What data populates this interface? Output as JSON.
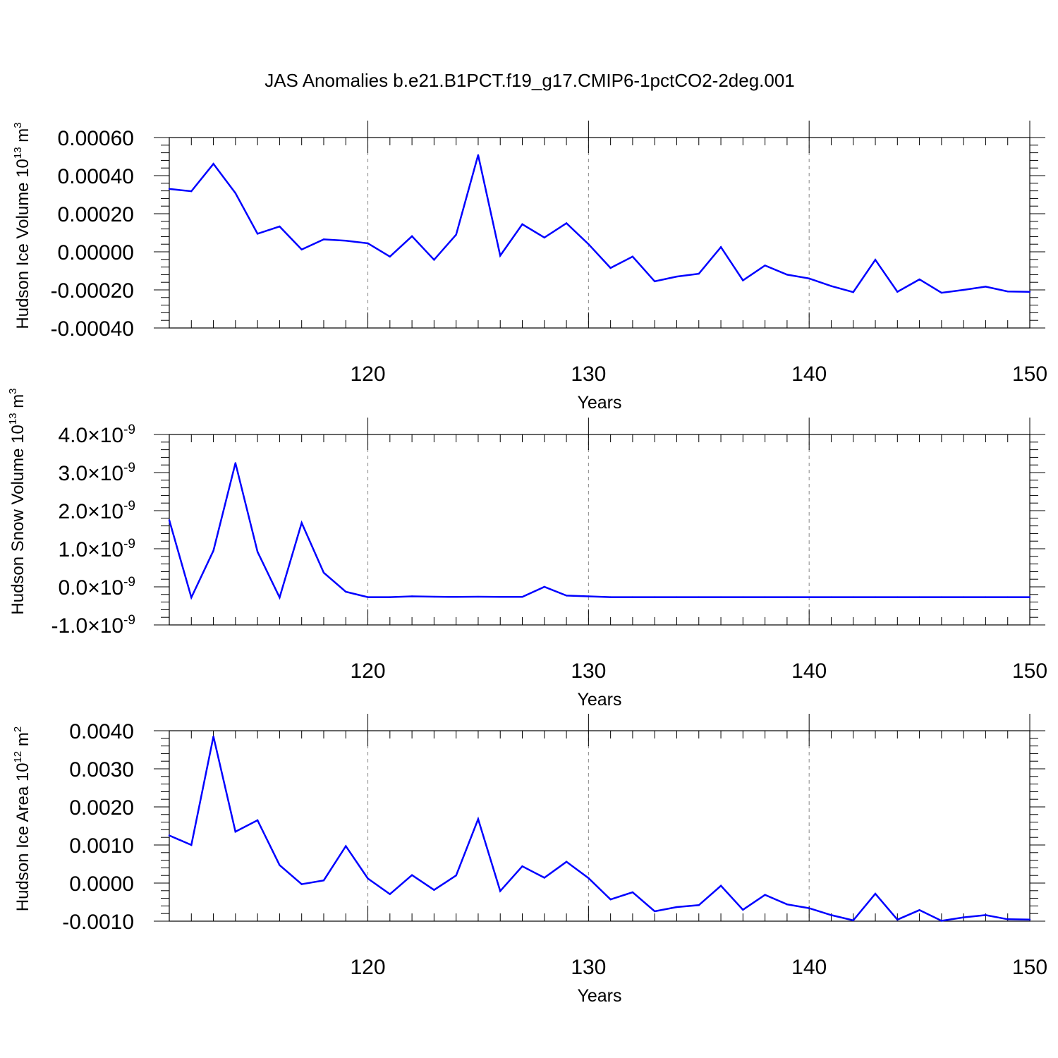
{
  "title": "JAS Anomalies b.e21.B1PCT.f19_g17.CMIP6-1pctCO2-2deg.001",
  "colors": {
    "line": "#0000ff",
    "axis": "#000000",
    "grid": "#888888"
  },
  "chart_data": [
    {
      "type": "line",
      "xlabel": "Years",
      "ylabel": "Hudson Ice Volume 10",
      "ylabel_exp": "13",
      "ylabel_unit": " m",
      "ylabel_unit_exp": "3",
      "xlim": [
        111,
        150
      ],
      "ylim": [
        -0.0004,
        0.0006
      ],
      "xticks": [
        120,
        130,
        140,
        150
      ],
      "yticks": [
        0.0006,
        0.0004,
        0.0002,
        0.0,
        -0.0002,
        -0.0004
      ],
      "ytick_labels": [
        "0.00060",
        "0.00040",
        "0.00020",
        "0.00000",
        "-0.00020",
        "-0.00040"
      ],
      "grid_x": [
        120,
        130,
        140
      ],
      "x": [
        111,
        112,
        113,
        114,
        115,
        116,
        117,
        118,
        119,
        120,
        121,
        122,
        123,
        124,
        125,
        126,
        127,
        128,
        129,
        130,
        131,
        132,
        133,
        134,
        135,
        136,
        137,
        138,
        139,
        140,
        141,
        142,
        143,
        144,
        145,
        146,
        147,
        148,
        149,
        150
      ],
      "values": [
        0.00033,
        0.000318,
        0.000462,
        0.000308,
        9.5e-05,
        0.000133,
        1.2e-05,
        6.5e-05,
        5.8e-05,
        4.5e-05,
        -2.5e-05,
        8.2e-05,
        -4.2e-05,
        9e-05,
        0.000508,
        -2e-05,
        0.000145,
        7.5e-05,
        0.00015,
        4e-05,
        -8.5e-05,
        -2.5e-05,
        -0.000155,
        -0.00013,
        -0.000115,
        2.5e-05,
        -0.00015,
        -7.2e-05,
        -0.00012,
        -0.00014,
        -0.00018,
        -0.000212,
        -4.2e-05,
        -0.00021,
        -0.000145,
        -0.000215,
        -0.0002,
        -0.000183,
        -0.000208,
        -0.00021
      ]
    },
    {
      "type": "line",
      "xlabel": "Years",
      "ylabel": "Hudson Snow Volume 10",
      "ylabel_exp": "13",
      "ylabel_unit": " m",
      "ylabel_unit_exp": "3",
      "xlim": [
        111,
        150
      ],
      "ylim": [
        -1e-09,
        4e-09
      ],
      "xticks": [
        120,
        130,
        140,
        150
      ],
      "yticks": [
        4e-09,
        3e-09,
        2e-09,
        1e-09,
        0.0,
        -1e-09
      ],
      "ytick_labels": [
        "4.0",
        "3.0",
        "2.0",
        "1.0",
        "0.0",
        "-1.0"
      ],
      "ytick_mult": "×10",
      "ytick_exp": "-9",
      "grid_x": [
        120,
        130,
        140
      ],
      "x": [
        111,
        112,
        113,
        114,
        115,
        116,
        117,
        118,
        119,
        120,
        121,
        122,
        123,
        124,
        125,
        126,
        127,
        128,
        129,
        130,
        131,
        132,
        133,
        134,
        135,
        136,
        137,
        138,
        139,
        140,
        141,
        142,
        143,
        144,
        145,
        146,
        147,
        148,
        149,
        150
      ],
      "values": [
        1.75e-09,
        -2.8e-10,
        9.5e-10,
        3.25e-09,
        9.2e-10,
        -2.8e-10,
        1.68e-09,
        3.7e-10,
        -1.3e-10,
        -2.7e-10,
        -2.7e-10,
        -2.5e-10,
        -2.6e-10,
        -2.65e-10,
        -2.6e-10,
        -2.65e-10,
        -2.65e-10,
        0.0,
        -2.3e-10,
        -2.5e-10,
        -2.7e-10,
        -2.7e-10,
        -2.7e-10,
        -2.7e-10,
        -2.7e-10,
        -2.7e-10,
        -2.7e-10,
        -2.7e-10,
        -2.7e-10,
        -2.7e-10,
        -2.7e-10,
        -2.7e-10,
        -2.7e-10,
        -2.7e-10,
        -2.7e-10,
        -2.7e-10,
        -2.7e-10,
        -2.7e-10,
        -2.7e-10,
        -2.7e-10
      ]
    },
    {
      "type": "line",
      "xlabel": "Years",
      "ylabel": "Hudson Ice Area 10",
      "ylabel_exp": "12",
      "ylabel_unit": " m",
      "ylabel_unit_exp": "2",
      "xlim": [
        111,
        150
      ],
      "ylim": [
        -0.001,
        0.004
      ],
      "xticks": [
        120,
        130,
        140,
        150
      ],
      "yticks": [
        0.004,
        0.003,
        0.002,
        0.001,
        0.0,
        -0.001
      ],
      "ytick_labels": [
        "0.0040",
        "0.0030",
        "0.0020",
        "0.0010",
        "0.0000",
        "-0.0010"
      ],
      "grid_x": [
        120,
        130,
        140
      ],
      "x": [
        111,
        112,
        113,
        114,
        115,
        116,
        117,
        118,
        119,
        120,
        121,
        122,
        123,
        124,
        125,
        126,
        127,
        128,
        129,
        130,
        131,
        132,
        133,
        134,
        135,
        136,
        137,
        138,
        139,
        140,
        141,
        142,
        143,
        144,
        145,
        146,
        147,
        148,
        149,
        150
      ],
      "values": [
        0.00125,
        0.001,
        0.00385,
        0.00135,
        0.00165,
        0.00047,
        -3e-05,
        7e-05,
        0.00097,
        0.00012,
        -0.00029,
        0.00021,
        -0.00018,
        0.0002,
        0.00168,
        -0.00021,
        0.00044,
        0.00014,
        0.00056,
        0.00013,
        -0.00043,
        -0.00024,
        -0.00074,
        -0.00063,
        -0.00058,
        -7e-05,
        -0.0007,
        -0.00031,
        -0.00056,
        -0.00066,
        -0.00084,
        -0.00098,
        -0.00028,
        -0.00096,
        -0.00071,
        -0.00099,
        -0.0009,
        -0.00084,
        -0.00095,
        -0.00096
      ]
    }
  ]
}
